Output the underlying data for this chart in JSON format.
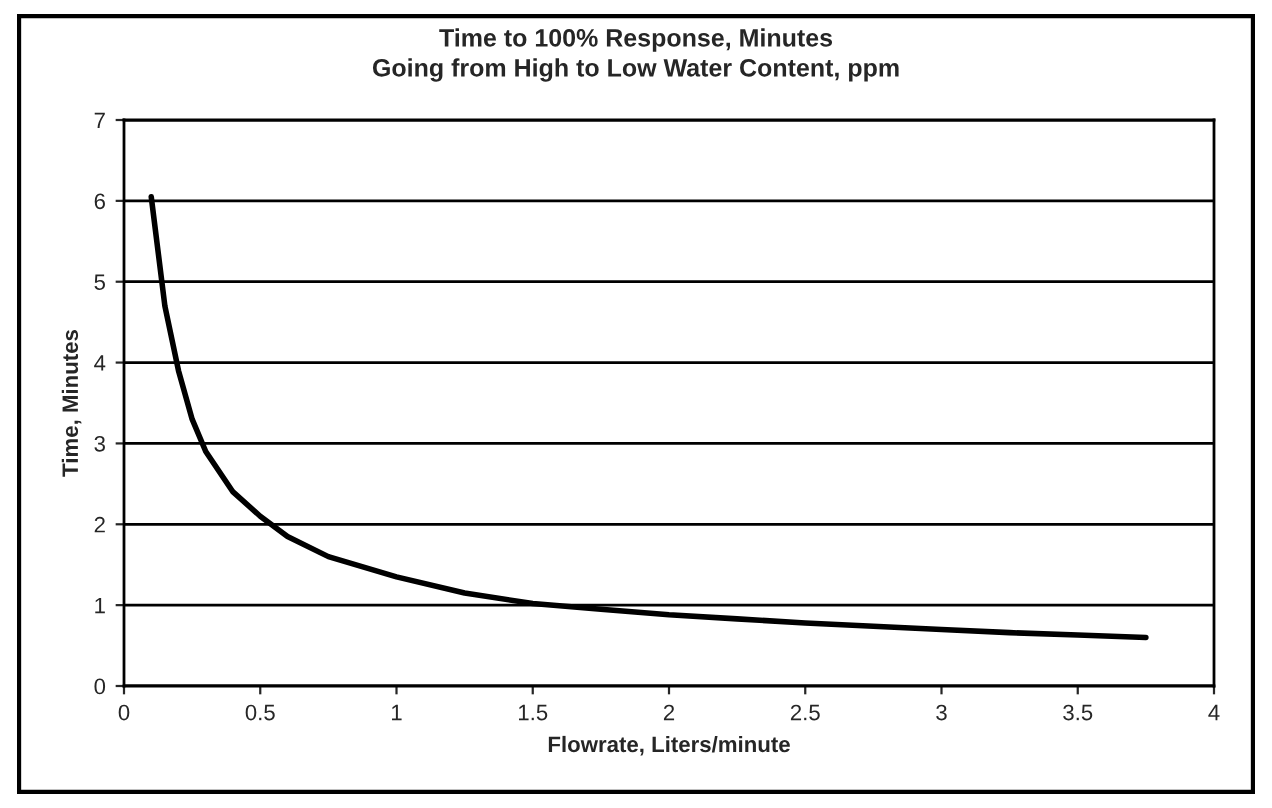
{
  "chart_data": {
    "type": "line",
    "title": "Time to 100% Response, Minutes",
    "subtitle": "Going from High to Low Water Content, ppm",
    "xlabel": "Flowrate, Liters/minute",
    "ylabel": "Time, Minutes",
    "series": [
      {
        "color": "#000000",
        "x": [
          0.1,
          0.15,
          0.2,
          0.25,
          0.3,
          0.4,
          0.5,
          0.6,
          0.75,
          1.0,
          1.25,
          1.5,
          1.75,
          2.0,
          2.25,
          2.5,
          2.75,
          3.0,
          3.25,
          3.5,
          3.75
        ],
        "values": [
          6.05,
          4.7,
          3.9,
          3.3,
          2.9,
          2.4,
          2.1,
          1.85,
          1.6,
          1.35,
          1.15,
          1.02,
          0.95,
          0.88,
          0.83,
          0.78,
          0.74,
          0.7,
          0.66,
          0.63,
          0.6
        ]
      }
    ],
    "xlim": [
      0,
      4
    ],
    "xticks": [
      0,
      0.5,
      1,
      1.5,
      2,
      2.5,
      3,
      3.5,
      4
    ],
    "ylim": [
      0,
      7
    ],
    "yticks": [
      0,
      1,
      2,
      3,
      4,
      5,
      6,
      7
    ],
    "grid": "y",
    "marker": "none",
    "line_style": "solid"
  }
}
